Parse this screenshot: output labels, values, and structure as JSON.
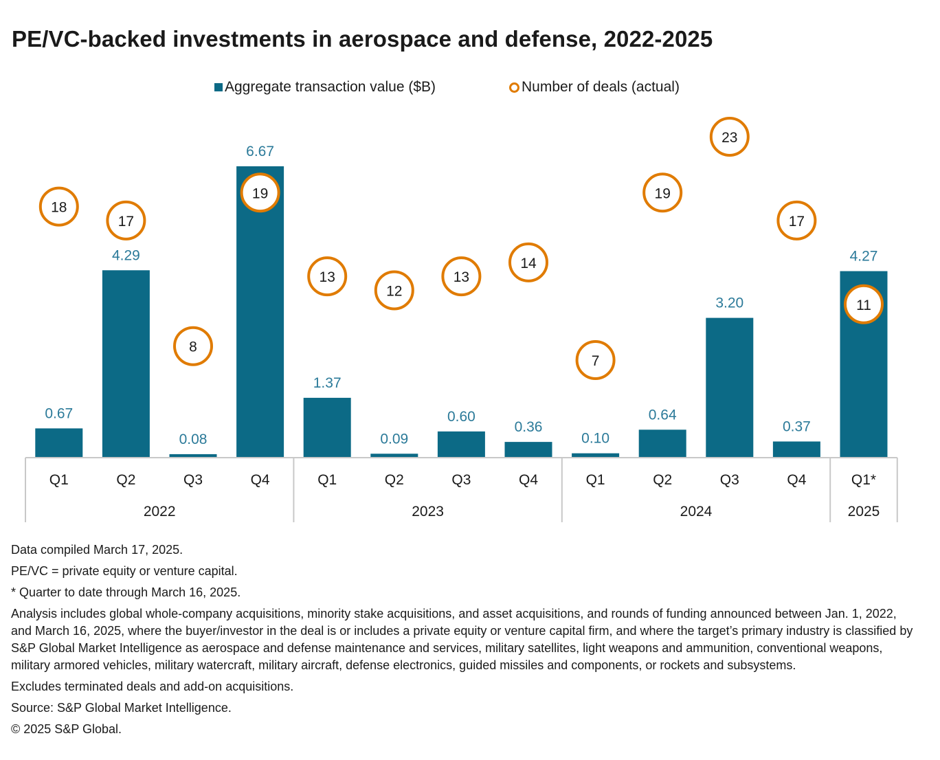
{
  "title": "PE/VC-backed investments in aerospace and defense, 2022-2025",
  "legend": {
    "bar_label": "Aggregate transaction value ($B)",
    "circle_label": "Number of deals (actual)"
  },
  "colors": {
    "bar": "#0c6a86",
    "bar_label": "#2b7a99",
    "circle": "#e07b00",
    "axis": "#c8c8c8"
  },
  "chart_data": {
    "type": "bar",
    "title": "PE/VC-backed investments in aerospace and defense, 2022-2025",
    "categories": [
      "Q1",
      "Q2",
      "Q3",
      "Q4",
      "Q1",
      "Q2",
      "Q3",
      "Q4",
      "Q1",
      "Q2",
      "Q3",
      "Q4",
      "Q1*"
    ],
    "years": [
      {
        "label": "2022",
        "count": 4
      },
      {
        "label": "2023",
        "count": 4
      },
      {
        "label": "2024",
        "count": 4
      },
      {
        "label": "2025",
        "count": 1
      }
    ],
    "series": [
      {
        "name": "Aggregate transaction value ($B)",
        "type": "bar",
        "values": [
          0.67,
          4.29,
          0.08,
          6.67,
          1.37,
          0.09,
          0.6,
          0.36,
          0.1,
          0.64,
          3.2,
          0.37,
          4.27
        ],
        "labels": [
          "0.67",
          "4.29",
          "0.08",
          "6.67",
          "1.37",
          "0.09",
          "0.60",
          "0.36",
          "0.10",
          "0.64",
          "3.20",
          "0.37",
          "4.27"
        ]
      },
      {
        "name": "Number of deals (actual)",
        "type": "scatter",
        "values": [
          18,
          17,
          8,
          19,
          13,
          12,
          13,
          14,
          7,
          19,
          23,
          17,
          11
        ]
      }
    ],
    "ylim_bar": [
      0,
      6.67
    ],
    "ylim_deals": [
      7,
      23
    ],
    "xlabel": "",
    "ylabel": ""
  },
  "notes": [
    "Data compiled March 17, 2025.",
    "PE/VC = private equity or venture capital.",
    "* Quarter to date through March 16, 2025.",
    "Analysis includes global whole-company acquisitions, minority stake acquisitions, and asset acquisitions, and rounds of funding announced between Jan. 1, 2022, and March 16, 2025, where the buyer/investor in the deal is or includes a private equity or venture capital firm, and where the target’s primary industry is classified by S&P Global Market Intelligence as aerospace and defense maintenance and services, military satellites, light weapons and ammunition, conventional weapons, military armored vehicles, military watercraft, military aircraft, defense electronics, guided missiles and components, or rockets and subsystems.",
    "Excludes terminated deals and add-on acquisitions.",
    "Source: S&P Global Market Intelligence.",
    "© 2025 S&P Global."
  ]
}
